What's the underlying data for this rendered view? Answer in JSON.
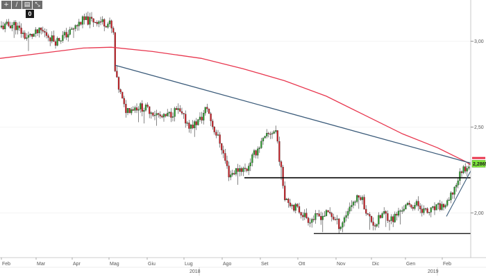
{
  "toolbar": {
    "buttons": [
      "+",
      "/",
      "▤",
      "⤡"
    ],
    "badge": "0"
  },
  "chart_data": {
    "type": "candlestick",
    "x_tick_labels": [
      "Feb",
      "Mar",
      "Apr",
      "Mag",
      "Giu",
      "Lug",
      "Ago",
      "Set",
      "Ott",
      "Nov",
      "Dic",
      "Gen",
      "Feb"
    ],
    "x_year_labels": [
      "2018",
      "2019"
    ],
    "y_tick_labels": [
      "3,00",
      "2,50",
      "2,00"
    ],
    "ylim": [
      1.74,
      3.24
    ],
    "current_price_label": "2,2865",
    "colors": {
      "up": "#2e9e2e",
      "down": "#cc2229",
      "moving_average": "#e8364e",
      "trendline": "#3b5b7a",
      "support": "#000000"
    },
    "key_points": [
      {
        "month": "Feb 2018",
        "close": 3.1
      },
      {
        "month": "Apr 2018",
        "close": 3.1
      },
      {
        "month": "Mag 2018 (peak)",
        "close": 3.13
      },
      {
        "month": "Mag 2018 (gap down)",
        "close": 2.75
      },
      {
        "month": "Lug 2018",
        "close": 2.55
      },
      {
        "month": "Ago 2018",
        "close": 2.2
      },
      {
        "month": "Set 2018",
        "close": 2.43
      },
      {
        "month": "Ott 2018",
        "close": 2.0
      },
      {
        "month": "Nov 2018",
        "close": 1.93
      },
      {
        "month": "Dic 2018",
        "close": 1.95
      },
      {
        "month": "Gen 2019",
        "close": 2.03
      },
      {
        "month": "Feb 2019",
        "close": 2.29
      }
    ]
  }
}
